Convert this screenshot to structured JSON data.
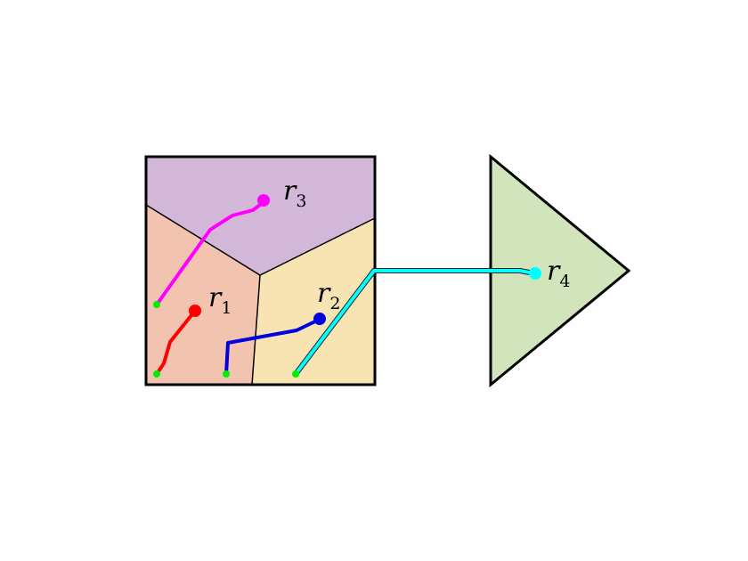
{
  "colors": {
    "region_r1": "#f2c4b0",
    "region_r2": "#f7e4b2",
    "region_r3": "#d2b7d8",
    "region_r4": "#d1e4bb",
    "path_r1": "#ff0000",
    "path_r2": "#0000e0",
    "path_r3": "#ff00ff",
    "path_r4": "#00ffff",
    "start_point": "#00ee00"
  },
  "robots": [
    {
      "id": "r1",
      "letter": "r",
      "index": "1"
    },
    {
      "id": "r2",
      "letter": "r",
      "index": "2"
    },
    {
      "id": "r3",
      "letter": "r",
      "index": "3"
    },
    {
      "id": "r4",
      "letter": "r",
      "index": "4"
    }
  ]
}
